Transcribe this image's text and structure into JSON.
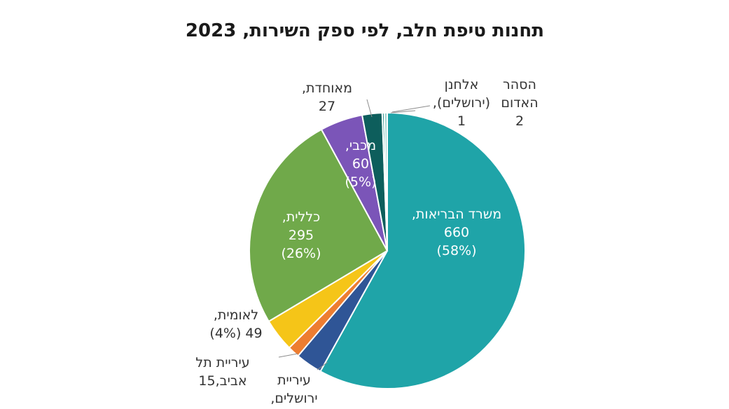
{
  "chart_data": {
    "type": "pie",
    "title": "תחנות טיפת חלב, לפי ספק השירות, 2023",
    "slices": [
      {
        "name": "משרד הבריאות",
        "value": 660,
        "percent": "58%",
        "color": "#1fa4a8",
        "label_lines": [
          "משרד הבריאות,",
          "660",
          "(58%)"
        ]
      },
      {
        "name": "עיריית ירושלים",
        "value": null,
        "percent": null,
        "color": "#2f5596",
        "label_lines": [
          "עיריית",
          "ירושלים,"
        ]
      },
      {
        "name": "עיריית תל אביב",
        "value": 15,
        "percent": null,
        "color": "#ed7d31",
        "label_lines": [
          "עיריית תל",
          "אביב,15"
        ]
      },
      {
        "name": "לאומית",
        "value": 49,
        "percent": "4%",
        "color": "#f5c518",
        "label_lines": [
          "לאומית,",
          "49 (4%)"
        ]
      },
      {
        "name": "כללית",
        "value": 295,
        "percent": "26%",
        "color": "#70a94a",
        "label_lines": [
          "כללית,",
          "295",
          "(26%)"
        ]
      },
      {
        "name": "מכבי",
        "value": 60,
        "percent": "5%",
        "color": "#7b55b8",
        "label_lines": [
          "מכבי,",
          "60",
          "(5%)"
        ]
      },
      {
        "name": "מאוחדת",
        "value": 27,
        "percent": null,
        "color": "#0d5e5c",
        "label_lines": [
          "מאוחדת,",
          "27"
        ]
      },
      {
        "name": "אלחנן (ירושלים)",
        "value": 1,
        "percent": null,
        "color": "#2a8f8a",
        "label_lines": [
          "אלחנן",
          "(ירושלים),",
          "1"
        ]
      },
      {
        "name": "הסהר האדום",
        "value": 2,
        "percent": null,
        "color": "#9fd4d0",
        "label_lines": [
          "הסהר",
          "האדום",
          "2"
        ]
      }
    ],
    "legend": "none"
  }
}
